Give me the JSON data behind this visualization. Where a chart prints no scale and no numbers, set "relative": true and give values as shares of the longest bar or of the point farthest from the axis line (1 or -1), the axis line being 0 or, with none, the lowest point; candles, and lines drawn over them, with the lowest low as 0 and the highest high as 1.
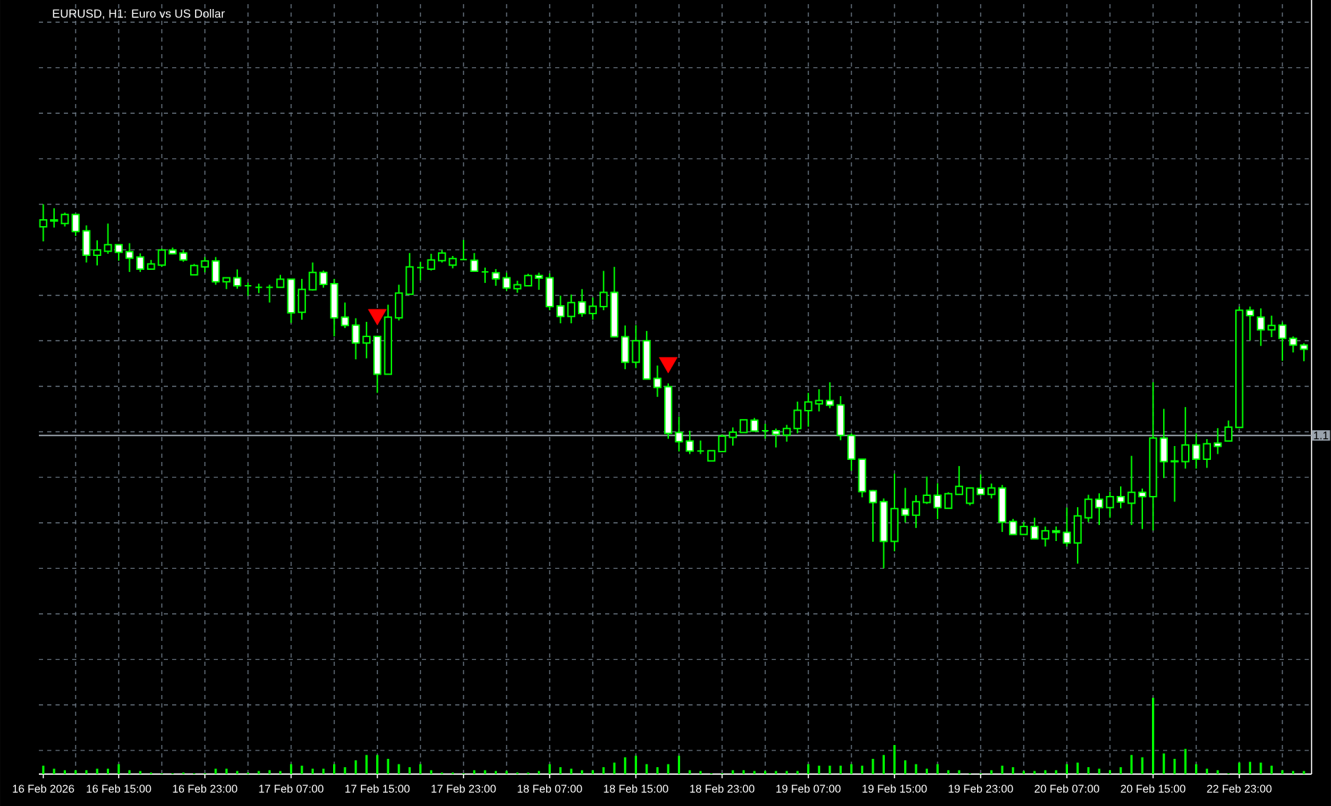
{
  "chart_data": [
    {
      "type": "candlestick",
      "title": "EURUSD, H1:  Euro vs US Dollar",
      "relative": true,
      "grid": true,
      "color": "#00ff00",
      "categories": [
        "16 Feb 2026",
        null,
        null,
        null,
        null,
        null,
        null,
        "16 Feb 15:00",
        null,
        null,
        null,
        null,
        null,
        null,
        null,
        "16 Feb 23:00",
        null,
        null,
        null,
        null,
        null,
        null,
        null,
        "17 Feb 07:00",
        null,
        null,
        null,
        null,
        null,
        null,
        null,
        "17 Feb 15:00",
        null,
        null,
        null,
        null,
        null,
        null,
        null,
        "17 Feb 23:00",
        null,
        null,
        null,
        null,
        null,
        null,
        null,
        "18 Feb 07:00",
        null,
        null,
        null,
        null,
        null,
        null,
        null,
        "18 Feb 15:00",
        null,
        null,
        null,
        null,
        null,
        null,
        null,
        "18 Feb 23:00",
        null,
        null,
        null,
        null,
        null,
        null,
        null,
        "19 Feb 07:00",
        null,
        null,
        null,
        null,
        null,
        null,
        null,
        "19 Feb 15:00",
        null,
        null,
        null,
        null,
        null,
        null,
        null,
        "19 Feb 23:00",
        null,
        null,
        null,
        null,
        null,
        null,
        null,
        "20 Feb 07:00",
        null,
        null,
        null,
        null,
        null,
        null,
        null,
        "20 Feb 15:00",
        null,
        null,
        null,
        null,
        null,
        null,
        null,
        "22 Feb 23:00",
        null,
        null,
        null,
        null,
        null,
        null
      ],
      "ohlc": [
        [
          0.938,
          1.0,
          0.898,
          0.957
        ],
        [
          0.957,
          0.989,
          0.936,
          0.954
        ],
        [
          0.947,
          0.977,
          0.939,
          0.972
        ],
        [
          0.972,
          0.972,
          0.913,
          0.925
        ],
        [
          0.927,
          0.942,
          0.84,
          0.86
        ],
        [
          0.86,
          0.901,
          0.832,
          0.874
        ],
        [
          0.871,
          0.947,
          0.864,
          0.889
        ],
        [
          0.889,
          0.889,
          0.845,
          0.868
        ],
        [
          0.87,
          0.893,
          0.814,
          0.852
        ],
        [
          0.855,
          0.865,
          0.814,
          0.822
        ],
        [
          0.822,
          0.847,
          0.821,
          0.836
        ],
        [
          0.833,
          0.878,
          0.828,
          0.874
        ],
        [
          0.874,
          0.881,
          0.863,
          0.864
        ],
        [
          0.866,
          0.874,
          0.842,
          0.847
        ],
        [
          0.806,
          0.836,
          0.806,
          0.832
        ],
        [
          0.828,
          0.855,
          0.813,
          0.844
        ],
        [
          0.844,
          0.855,
          0.779,
          0.787
        ],
        [
          0.787,
          0.798,
          0.767,
          0.798
        ],
        [
          0.798,
          0.821,
          0.768,
          0.776
        ],
        [
          0.776,
          0.785,
          0.749,
          0.776
        ],
        [
          0.772,
          0.782,
          0.756,
          0.772
        ],
        [
          0.772,
          0.779,
          0.73,
          0.772
        ],
        [
          0.772,
          0.806,
          0.772,
          0.794
        ],
        [
          0.794,
          0.794,
          0.674,
          0.702
        ],
        [
          0.703,
          0.795,
          0.683,
          0.766
        ],
        [
          0.765,
          0.84,
          0.763,
          0.813
        ],
        [
          0.813,
          0.818,
          0.771,
          0.78
        ],
        [
          0.782,
          0.795,
          0.637,
          0.688
        ],
        [
          0.69,
          0.73,
          0.66,
          0.667
        ],
        [
          0.668,
          0.687,
          0.574,
          0.619
        ],
        [
          0.619,
          0.677,
          0.577,
          0.637
        ],
        [
          0.637,
          0.637,
          0.482,
          0.533
        ],
        [
          0.533,
          0.724,
          0.533,
          0.69
        ],
        [
          0.688,
          0.779,
          0.681,
          0.756
        ],
        [
          0.753,
          0.866,
          0.753,
          0.828
        ],
        [
          0.826,
          0.842,
          0.791,
          0.826
        ],
        [
          0.822,
          0.864,
          0.818,
          0.847
        ],
        [
          0.845,
          0.874,
          0.84,
          0.866
        ],
        [
          0.833,
          0.858,
          0.824,
          0.851
        ],
        [
          0.848,
          0.902,
          0.847,
          0.848
        ],
        [
          0.846,
          0.866,
          0.816,
          0.816
        ],
        [
          0.814,
          0.826,
          0.784,
          0.814
        ],
        [
          0.812,
          0.822,
          0.776,
          0.795
        ],
        [
          0.798,
          0.812,
          0.762,
          0.77
        ],
        [
          0.768,
          0.79,
          0.757,
          0.779
        ],
        [
          0.776,
          0.809,
          0.775,
          0.804
        ],
        [
          0.804,
          0.812,
          0.765,
          0.797
        ],
        [
          0.798,
          0.81,
          0.709,
          0.719
        ],
        [
          0.721,
          0.749,
          0.673,
          0.692
        ],
        [
          0.692,
          0.752,
          0.673,
          0.73
        ],
        [
          0.732,
          0.767,
          0.691,
          0.7
        ],
        [
          0.7,
          0.744,
          0.683,
          0.72
        ],
        [
          0.719,
          0.817,
          0.709,
          0.758
        ],
        [
          0.758,
          0.828,
          0.636,
          0.636
        ],
        [
          0.636,
          0.667,
          0.547,
          0.566
        ],
        [
          0.566,
          0.668,
          0.55,
          0.625
        ],
        [
          0.625,
          0.652,
          0.52,
          0.52
        ],
        [
          0.522,
          0.557,
          0.471,
          0.497
        ],
        [
          0.499,
          0.508,
          0.356,
          0.371
        ],
        [
          0.373,
          0.417,
          0.321,
          0.348
        ],
        [
          0.35,
          0.378,
          0.314,
          0.322
        ],
        [
          0.322,
          0.351,
          0.314,
          0.322
        ],
        [
          0.295,
          0.323,
          0.295,
          0.323
        ],
        [
          0.321,
          0.368,
          0.319,
          0.363
        ],
        [
          0.36,
          0.387,
          0.337,
          0.374
        ],
        [
          0.373,
          0.408,
          0.373,
          0.408
        ],
        [
          0.407,
          0.413,
          0.377,
          0.377
        ],
        [
          0.378,
          0.397,
          0.356,
          0.378
        ],
        [
          0.378,
          0.384,
          0.332,
          0.368
        ],
        [
          0.366,
          0.394,
          0.348,
          0.384
        ],
        [
          0.384,
          0.458,
          0.371,
          0.434
        ],
        [
          0.433,
          0.482,
          0.389,
          0.457
        ],
        [
          0.452,
          0.492,
          0.431,
          0.461
        ],
        [
          0.461,
          0.511,
          0.44,
          0.448
        ],
        [
          0.449,
          0.473,
          0.352,
          0.365
        ],
        [
          0.365,
          0.371,
          0.268,
          0.3
        ],
        [
          0.3,
          0.3,
          0.195,
          0.211
        ],
        [
          0.213,
          0.215,
          0.073,
          0.181
        ],
        [
          0.183,
          0.192,
          0,
          0.074
        ],
        [
          0.074,
          0.26,
          0.047,
          0.164
        ],
        [
          0.163,
          0.221,
          0.126,
          0.146
        ],
        [
          0.146,
          0.201,
          0.111,
          0.183
        ],
        [
          0.181,
          0.252,
          0.177,
          0.201
        ],
        [
          0.201,
          0.234,
          0.135,
          0.167
        ],
        [
          0.165,
          0.209,
          0.165,
          0.205
        ],
        [
          0.203,
          0.281,
          0.203,
          0.225
        ],
        [
          0.179,
          0.221,
          0.173,
          0.221
        ],
        [
          0.22,
          0.258,
          0.203,
          0.203
        ],
        [
          0.203,
          0.233,
          0.192,
          0.221
        ],
        [
          0.221,
          0.229,
          0.1,
          0.127
        ],
        [
          0.129,
          0.136,
          0.093,
          0.093
        ],
        [
          0.093,
          0.127,
          0.093,
          0.115
        ],
        [
          0.115,
          0.139,
          0.081,
          0.081
        ],
        [
          0.081,
          0.115,
          0.06,
          0.103
        ],
        [
          0.103,
          0.115,
          0.075,
          0.099
        ],
        [
          0.099,
          0.167,
          0.06,
          0.07
        ],
        [
          0.07,
          0.168,
          0.013,
          0.144
        ],
        [
          0.139,
          0.202,
          0.127,
          0.19
        ],
        [
          0.19,
          0.206,
          0.119,
          0.167
        ],
        [
          0.167,
          0.211,
          0.139,
          0.197
        ],
        [
          0.197,
          0.225,
          0.165,
          0.182
        ],
        [
          0.179,
          0.309,
          0.119,
          0.209
        ],
        [
          0.209,
          0.219,
          0.108,
          0.197
        ],
        [
          0.197,
          0.511,
          0.104,
          0.358
        ],
        [
          0.358,
          0.438,
          0.248,
          0.293
        ],
        [
          0.293,
          0.336,
          0.183,
          0.295
        ],
        [
          0.293,
          0.443,
          0.274,
          0.339
        ],
        [
          0.339,
          0.371,
          0.274,
          0.3
        ],
        [
          0.3,
          0.355,
          0.276,
          0.342
        ],
        [
          0.344,
          0.385,
          0.314,
          0.335
        ],
        [
          0.35,
          0.406,
          0.35,
          0.388
        ],
        [
          0.387,
          0.719,
          0.387,
          0.709
        ],
        [
          0.709,
          0.719,
          0.626,
          0.694
        ],
        [
          0.69,
          0.714,
          0.611,
          0.655
        ],
        [
          0.655,
          0.694,
          0.635,
          0.667
        ],
        [
          0.668,
          0.676,
          0.57,
          0.632
        ],
        [
          0.632,
          0.637,
          0.593,
          0.613
        ],
        [
          0.613,
          0.618,
          0.569,
          0.602
        ]
      ],
      "colors": [
        "#000000",
        "#ffffff",
        "#000000",
        "#ffffff",
        "#ffffff",
        "#000000",
        "#000000",
        "#ffffff",
        "#ffffff",
        "#ffffff",
        "#000000",
        "#000000",
        "#ffffff",
        "#ffffff",
        "#000000",
        "#000000",
        "#ffffff",
        "#000000",
        "#ffffff",
        "#00ff00",
        "#00ff00",
        "#00ff00",
        "#000000",
        "#ffffff",
        "#000000",
        "#000000",
        "#ffffff",
        "#ffffff",
        "#ffffff",
        "#ffffff",
        "#000000",
        "#ffffff",
        "#000000",
        "#000000",
        "#000000",
        "#00ff00",
        "#000000",
        "#000000",
        "#000000",
        "#00ff00",
        "#ffffff",
        "#00ff00",
        "#ffffff",
        "#ffffff",
        "#000000",
        "#000000",
        "#ffffff",
        "#ffffff",
        "#ffffff",
        "#000000",
        "#ffffff",
        "#000000",
        "#000000",
        "#ffffff",
        "#ffffff",
        "#000000",
        "#ffffff",
        "#ffffff",
        "#ffffff",
        "#ffffff",
        "#ffffff",
        "#00ff00",
        "#000000",
        "#000000",
        "#000000",
        "#000000",
        "#ffffff",
        "#00ff00",
        "#ffffff",
        "#000000",
        "#000000",
        "#000000",
        "#000000",
        "#ffffff",
        "#ffffff",
        "#ffffff",
        "#ffffff",
        "#ffffff",
        "#ffffff",
        "#000000",
        "#ffffff",
        "#000000",
        "#000000",
        "#ffffff",
        "#000000",
        "#000000",
        "#000000",
        "#ffffff",
        "#000000",
        "#ffffff",
        "#ffffff",
        "#000000",
        "#ffffff",
        "#000000",
        "#ffffff",
        "#ffffff",
        "#000000",
        "#000000",
        "#ffffff",
        "#000000",
        "#ffffff",
        "#000000",
        "#ffffff",
        "#000000",
        "#ffffff",
        "#000000",
        "#000000",
        "#ffffff",
        "#000000",
        "#ffffff",
        "#000000",
        "#000000",
        "#ffffff",
        "#ffffff",
        "#000000",
        "#ffffff",
        "#ffffff",
        "#ffffff"
      ],
      "series": [
        {
          "type": "scatter",
          "color": "#ff0000",
          "marker": "triangle",
          "values": [
            null,
            null,
            null,
            null,
            null,
            null,
            null,
            null,
            null,
            null,
            null,
            null,
            null,
            null,
            null,
            null,
            null,
            null,
            null,
            null,
            null,
            null,
            null,
            null,
            null,
            null,
            null,
            null,
            null,
            null,
            null,
            0.697,
            null,
            null,
            null,
            null,
            null,
            null,
            null,
            null,
            null,
            null,
            null,
            null,
            null,
            null,
            null,
            null,
            null,
            null,
            null,
            null,
            null,
            null,
            null,
            null,
            null,
            null,
            0.565,
            null,
            null,
            null,
            null,
            null,
            null,
            null,
            null,
            null,
            null,
            null,
            null,
            null,
            null,
            null,
            null,
            null,
            null,
            null,
            null,
            null,
            null,
            null,
            null,
            null,
            null,
            null,
            null,
            null,
            null,
            null,
            null,
            null,
            null,
            null,
            null,
            null,
            null,
            null,
            null,
            null,
            null,
            null,
            null,
            null,
            null,
            null,
            null,
            null,
            null,
            null,
            null,
            null,
            null,
            null,
            null,
            null,
            null,
            null
          ]
        }
      ],
      "ref_lines": [
        {
          "axis": "y",
          "value": 0.365,
          "color": "#9aa3ad"
        }
      ],
      "annotations": [
        "1.1"
      ]
    },
    {
      "type": "bar",
      "relative": true,
      "color": "#00ff00",
      "categories": [
        null,
        null,
        null,
        null,
        null,
        null,
        null,
        null,
        null,
        null,
        null,
        null,
        null,
        null,
        null,
        null,
        null,
        null,
        null,
        null,
        null,
        null,
        null,
        null,
        null,
        null,
        null,
        null,
        null,
        null,
        null,
        null,
        null,
        null,
        null,
        null,
        null,
        null,
        null,
        null,
        null,
        null,
        null,
        null,
        null,
        null,
        null,
        null,
        null,
        null,
        null,
        null,
        null,
        null,
        null,
        null,
        null,
        null,
        null,
        null,
        null,
        null,
        null,
        null,
        null,
        null,
        null,
        null,
        null,
        null,
        null,
        null,
        null,
        null,
        null,
        null,
        null,
        null,
        null,
        null,
        null,
        null,
        null,
        null,
        null,
        null,
        null,
        null,
        null,
        null,
        null,
        null,
        null,
        null,
        null,
        null,
        null,
        null,
        null,
        null,
        null,
        null,
        null,
        null,
        null,
        null,
        null,
        null,
        null,
        null,
        null,
        null,
        null,
        null,
        null,
        null,
        null,
        null
      ],
      "values": [
        0.11,
        0.07,
        0.05,
        0.05,
        0.05,
        0.07,
        0.07,
        0.13,
        0.05,
        0.04,
        0.02,
        0.01,
        0.01,
        0.02,
        0.01,
        0.01,
        0.07,
        0.07,
        0.04,
        0.02,
        0.04,
        0.05,
        0.04,
        0.13,
        0.11,
        0.07,
        0.07,
        0.13,
        0.09,
        0.18,
        0.25,
        0.25,
        0.2,
        0.13,
        0.09,
        0.13,
        0.05,
        0.02,
        0.02,
        0.01,
        0.05,
        0.05,
        0.04,
        0.04,
        0.02,
        0.02,
        0.04,
        0.13,
        0.09,
        0.07,
        0.05,
        0.05,
        0.09,
        0.15,
        0.22,
        0.24,
        0.13,
        0.09,
        0.13,
        0.24,
        0.05,
        0.04,
        0.01,
        0.01,
        0.05,
        0.05,
        0.04,
        0.04,
        0.04,
        0.04,
        0.04,
        0.13,
        0.11,
        0.11,
        0.11,
        0.13,
        0.11,
        0.2,
        0.25,
        0.38,
        0.18,
        0.13,
        0.07,
        0.13,
        0.05,
        0.05,
        0.01,
        0.01,
        0.05,
        0.11,
        0.09,
        0.04,
        0.04,
        0.05,
        0.05,
        0.13,
        0.15,
        0.09,
        0.07,
        0.05,
        0.09,
        0.25,
        0.22,
        1,
        0.27,
        0.2,
        0.33,
        0.13,
        0.07,
        0.05,
        0.01,
        0.15,
        0.16,
        0.15,
        0.11,
        0.05,
        0.04,
        0.04
      ]
    }
  ]
}
